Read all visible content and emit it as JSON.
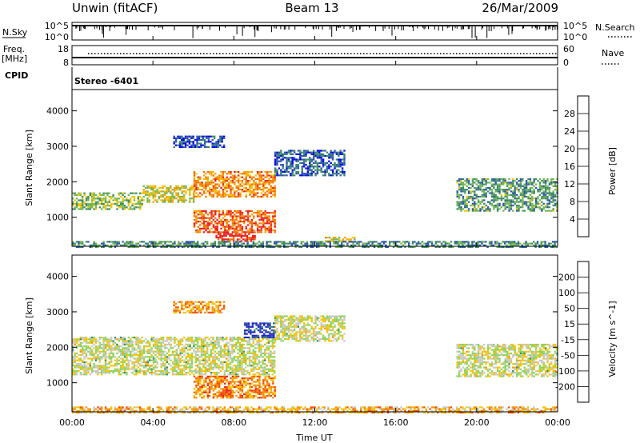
{
  "header": {
    "station": "Unwin (fitACF)",
    "beam": "Beam 13",
    "date": "26/Mar/2009"
  },
  "nsky_panel": {
    "label": "N.Sky",
    "y_ticks_left": [
      "10^5",
      "10^0"
    ],
    "right_label": "N.Search",
    "y_ticks_right": [
      "10^5",
      "10^0"
    ]
  },
  "freq_panel": {
    "label_line1": "Freq.",
    "label_line2": "[MHz]",
    "y_ticks_left": [
      "18",
      "8"
    ],
    "right_label": "Nave",
    "y_ticks_right": [
      "60",
      "0"
    ]
  },
  "cpid_panel": {
    "label": "CPID",
    "value": "Stereo -6401"
  },
  "x_axis": {
    "label": "Time UT",
    "ticks": [
      "00:00",
      "04:00",
      "08:00",
      "12:00",
      "16:00",
      "20:00",
      "00:00"
    ]
  },
  "chart_data": [
    {
      "type": "heatmap",
      "title": "Power",
      "ylabel": "Slant Range [km]",
      "xlabel": "",
      "x_range_hours": [
        0,
        24
      ],
      "ylim": [
        180,
        4600
      ],
      "y_ticks": [
        1000,
        2000,
        3000,
        4000
      ],
      "colorbar": {
        "label": "Power [dB]",
        "ticks": [
          "4",
          "8",
          "12",
          "16",
          "20",
          "24",
          "28"
        ],
        "colors": [
          "#0000f0",
          "#2d55a8",
          "#3b8a63",
          "#72b554",
          "#f2c400",
          "#f5a000",
          "#f57000",
          "#e82020"
        ]
      },
      "regions": [
        {
          "t0": 0.0,
          "t1": 3.5,
          "r0": 1250,
          "r1": 1700,
          "level": 0.45
        },
        {
          "t0": 3.5,
          "t1": 6.0,
          "r0": 1450,
          "r1": 1900,
          "level": 0.55
        },
        {
          "t0": 6.0,
          "t1": 10.0,
          "r0": 1600,
          "r1": 2300,
          "level": 0.75
        },
        {
          "t0": 10.0,
          "t1": 13.5,
          "r0": 2200,
          "r1": 2900,
          "level": 0.2
        },
        {
          "t0": 6.0,
          "t1": 10.0,
          "r0": 600,
          "r1": 1200,
          "level": 0.85
        },
        {
          "t0": 7.0,
          "t1": 9.0,
          "r0": 350,
          "r1": 600,
          "level": 0.95
        },
        {
          "t0": 5.0,
          "t1": 7.5,
          "r0": 3000,
          "r1": 3300,
          "level": 0.2
        },
        {
          "t0": 12.5,
          "t1": 14.0,
          "r0": 330,
          "r1": 450,
          "level": 0.6
        },
        {
          "t0": 19.0,
          "t1": 24.0,
          "r0": 1200,
          "r1": 2100,
          "level": 0.35
        },
        {
          "t0": 0.0,
          "t1": 24.0,
          "r0": 180,
          "r1": 330,
          "level": 0.3
        }
      ]
    },
    {
      "type": "heatmap",
      "title": "Velocity",
      "ylabel": "Slant Range [km]",
      "xlabel": "Time UT",
      "x_range_hours": [
        0,
        24
      ],
      "ylim": [
        180,
        4600
      ],
      "y_ticks": [
        1000,
        2000,
        3000,
        4000
      ],
      "colorbar": {
        "label": "Velocity [m s^-1]",
        "ticks": [
          "200",
          "100",
          "50",
          "15",
          "-15",
          "-50",
          "-100",
          "-200"
        ],
        "colors": [
          "#2020c8",
          "#2d55a8",
          "#3b8a63",
          "#8bd35a",
          "#c8c8c8",
          "#f2c400",
          "#f59000",
          "#f55000",
          "#e82020"
        ]
      },
      "regions": [
        {
          "t0": 0.0,
          "t1": 10.0,
          "r0": 1250,
          "r1": 2300,
          "level": 0.5
        },
        {
          "t0": 10.0,
          "t1": 13.5,
          "r0": 2200,
          "r1": 2900,
          "level": 0.5
        },
        {
          "t0": 6.0,
          "t1": 10.0,
          "r0": 600,
          "r1": 1200,
          "level": 0.75
        },
        {
          "t0": 8.5,
          "t1": 10.0,
          "r0": 2300,
          "r1": 2700,
          "level": 0.1
        },
        {
          "t0": 5.0,
          "t1": 7.5,
          "r0": 3000,
          "r1": 3300,
          "level": 0.7
        },
        {
          "t0": 19.0,
          "t1": 24.0,
          "r0": 1200,
          "r1": 2100,
          "level": 0.5
        },
        {
          "t0": 0.0,
          "t1": 24.0,
          "r0": 180,
          "r1": 330,
          "level": 0.65
        }
      ]
    }
  ]
}
